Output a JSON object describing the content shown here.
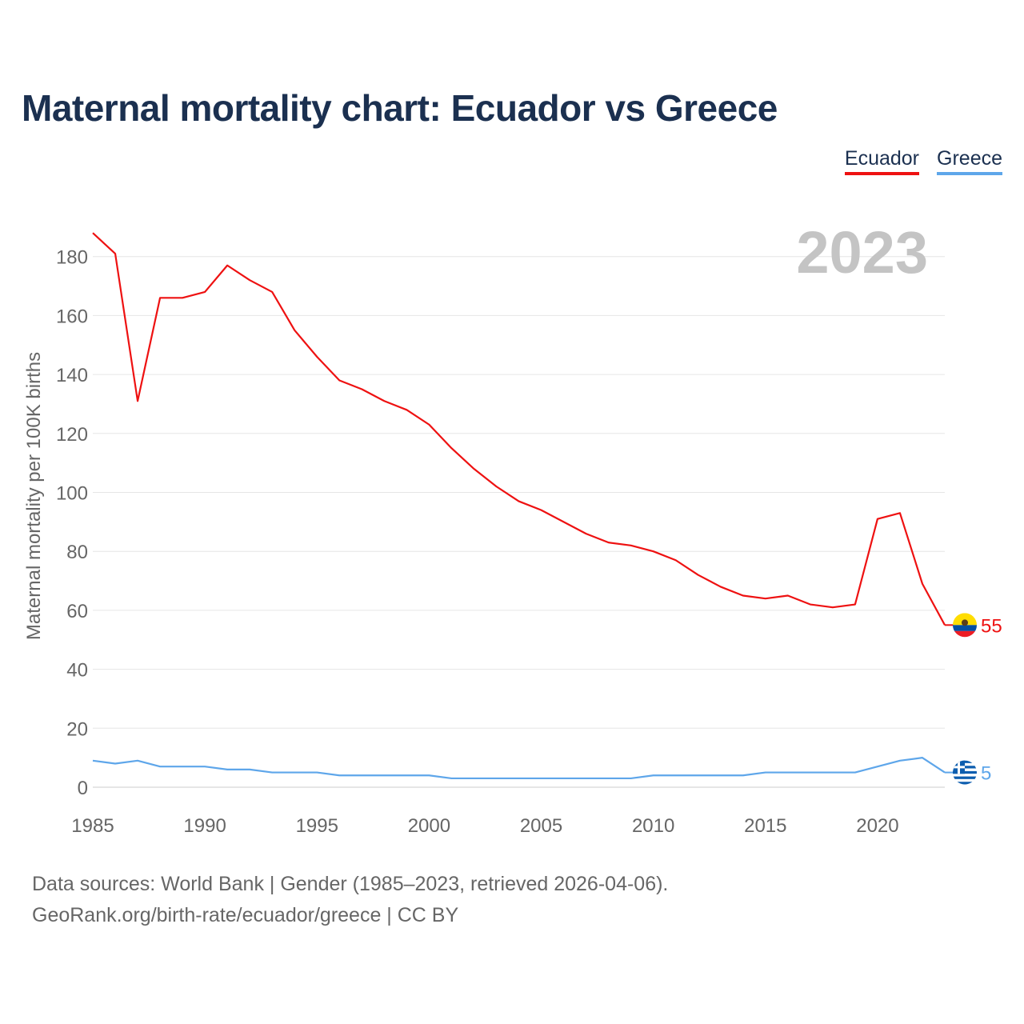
{
  "title": "Maternal mortality chart: Ecuador vs Greece",
  "legend": [
    {
      "label": "Ecuador",
      "color": "#ee1111"
    },
    {
      "label": "Greece",
      "color": "#5ea6ea"
    }
  ],
  "year_label": "2023",
  "footer": {
    "line1": "Data sources: World Bank | Gender (1985–2023, retrieved 2026-04-06).",
    "line2": "GeoRank.org/birth-rate/ecuador/greece | CC BY"
  },
  "chart_data": {
    "type": "line",
    "title": "Maternal mortality chart: Ecuador vs Greece",
    "xlabel": "",
    "ylabel": "Maternal mortality per 100K births",
    "xlim": [
      1985,
      2023
    ],
    "ylim": [
      0,
      190
    ],
    "x_ticks": [
      1985,
      1990,
      1995,
      2000,
      2005,
      2010,
      2015,
      2020
    ],
    "y_ticks": [
      0,
      20,
      40,
      60,
      80,
      100,
      120,
      140,
      160,
      180
    ],
    "grid": true,
    "x": [
      1985,
      1986,
      1987,
      1988,
      1989,
      1990,
      1991,
      1992,
      1993,
      1994,
      1995,
      1996,
      1997,
      1998,
      1999,
      2000,
      2001,
      2002,
      2003,
      2004,
      2005,
      2006,
      2007,
      2008,
      2009,
      2010,
      2011,
      2012,
      2013,
      2014,
      2015,
      2016,
      2017,
      2018,
      2019,
      2020,
      2021,
      2022,
      2023
    ],
    "series": [
      {
        "name": "Ecuador",
        "color": "#ee1111",
        "end_label": "55",
        "values": [
          188,
          181,
          131,
          166,
          166,
          168,
          177,
          172,
          168,
          155,
          146,
          138,
          135,
          131,
          128,
          123,
          115,
          108,
          102,
          97,
          94,
          90,
          86,
          83,
          82,
          80,
          77,
          72,
          68,
          65,
          64,
          65,
          62,
          61,
          62,
          91,
          93,
          69,
          55
        ]
      },
      {
        "name": "Greece",
        "color": "#5ea6ea",
        "end_label": "5",
        "values": [
          9,
          8,
          9,
          7,
          7,
          7,
          6,
          6,
          5,
          5,
          5,
          4,
          4,
          4,
          4,
          4,
          3,
          3,
          3,
          3,
          3,
          3,
          3,
          3,
          3,
          4,
          4,
          4,
          4,
          4,
          5,
          5,
          5,
          5,
          5,
          7,
          9,
          10,
          5
        ]
      }
    ]
  }
}
